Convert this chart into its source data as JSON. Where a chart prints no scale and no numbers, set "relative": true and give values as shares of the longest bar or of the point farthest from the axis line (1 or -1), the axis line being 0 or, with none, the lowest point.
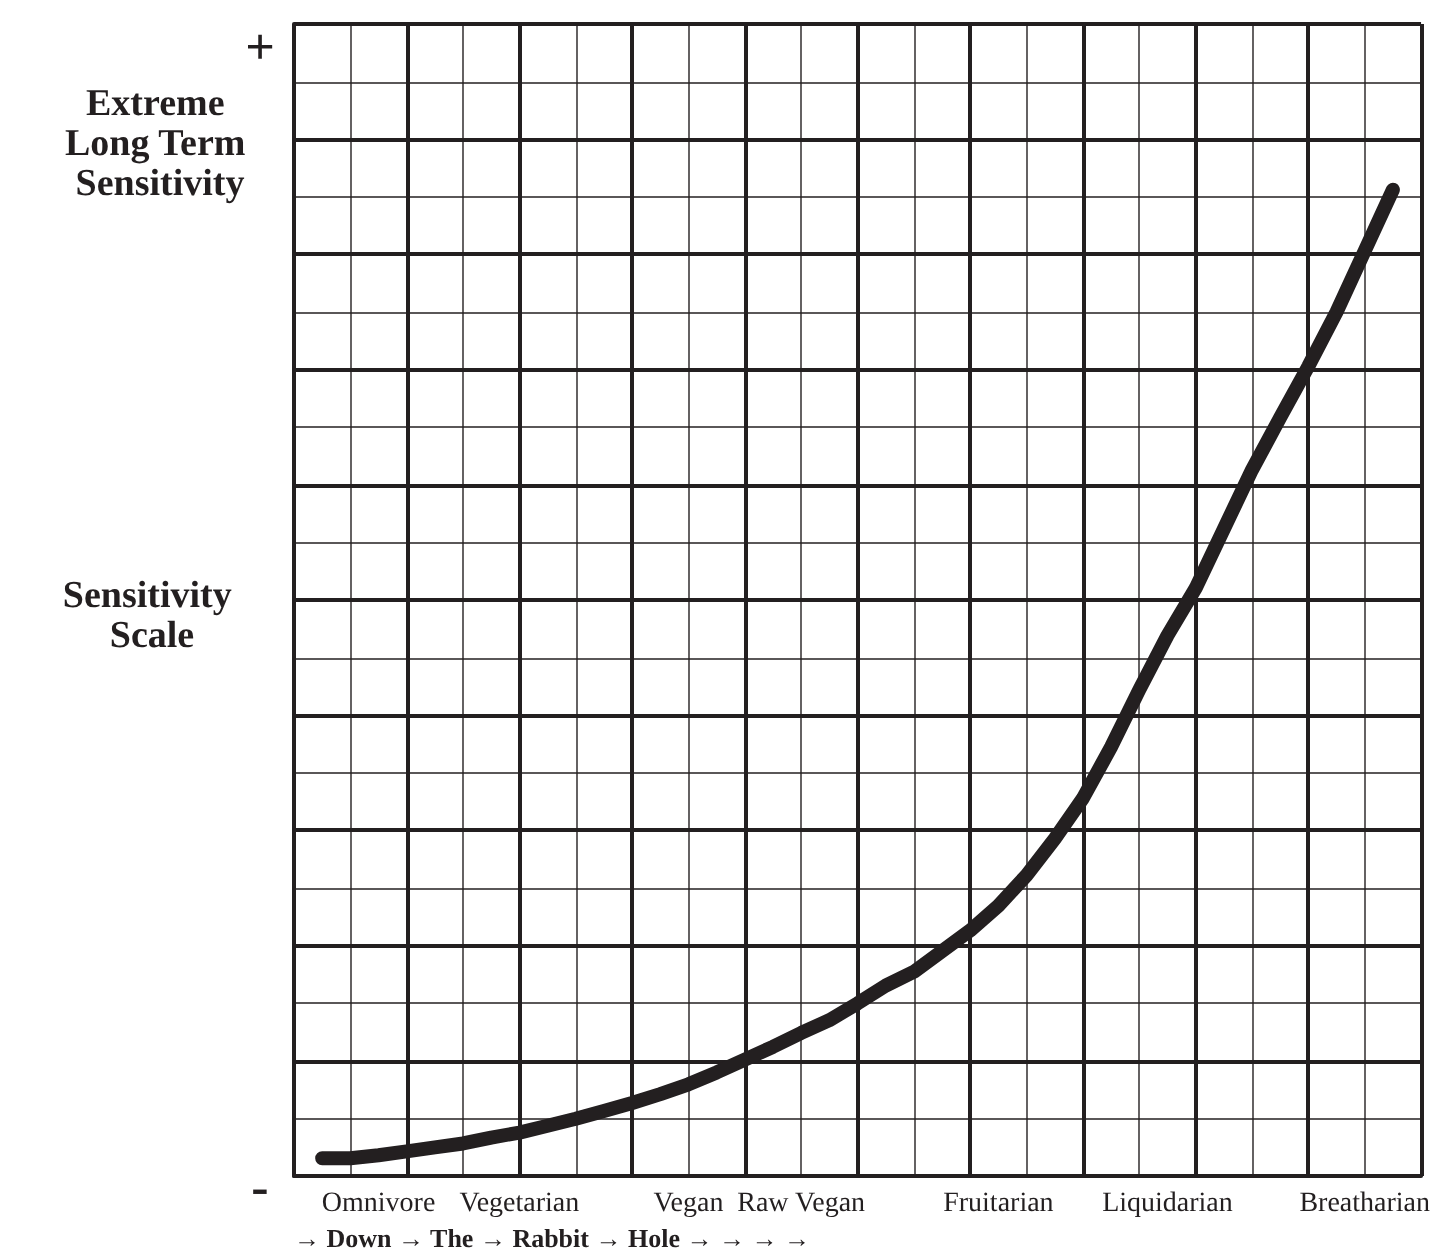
{
  "chart_data": {
    "type": "line",
    "relative": true,
    "ylabel": "Sensitivity Scale",
    "annotations": [
      "+",
      "Extreme Long Term Sensitivity",
      "-",
      "→ Down → The → Rabbit → Hole → → → →"
    ],
    "categories": [
      null,
      null,
      null,
      "Omnivore",
      null,
      null,
      null,
      null,
      "Vegetarian",
      null,
      null,
      null,
      null,
      null,
      "Vegan",
      null,
      null,
      null,
      "Raw Vegan",
      null,
      null,
      null,
      null,
      null,
      null,
      "Fruitarian",
      null,
      null,
      null,
      null,
      null,
      "Liquidarian",
      null,
      null,
      null,
      null,
      null,
      null,
      "Breatharian",
      null,
      null
    ],
    "grid": true,
    "marker": "none",
    "line_style": "solid",
    "series": [
      {
        "color": "#231f20",
        "values": [
          null,
          0.018,
          0.018,
          0.021,
          0.025,
          0.029,
          0.033,
          0.039,
          0.044,
          0.051,
          0.058,
          0.066,
          0.074,
          0.083,
          0.093,
          0.105,
          0.118,
          0.131,
          0.145,
          0.158,
          0.175,
          0.193,
          0.207,
          0.228,
          0.249,
          0.274,
          0.305,
          0.342,
          0.383,
          0.435,
          0.493,
          0.548,
          0.596,
          0.656,
          0.716,
          0.769,
          0.821,
          0.876,
          0.938,
          1,
          null
        ]
      }
    ]
  }
}
